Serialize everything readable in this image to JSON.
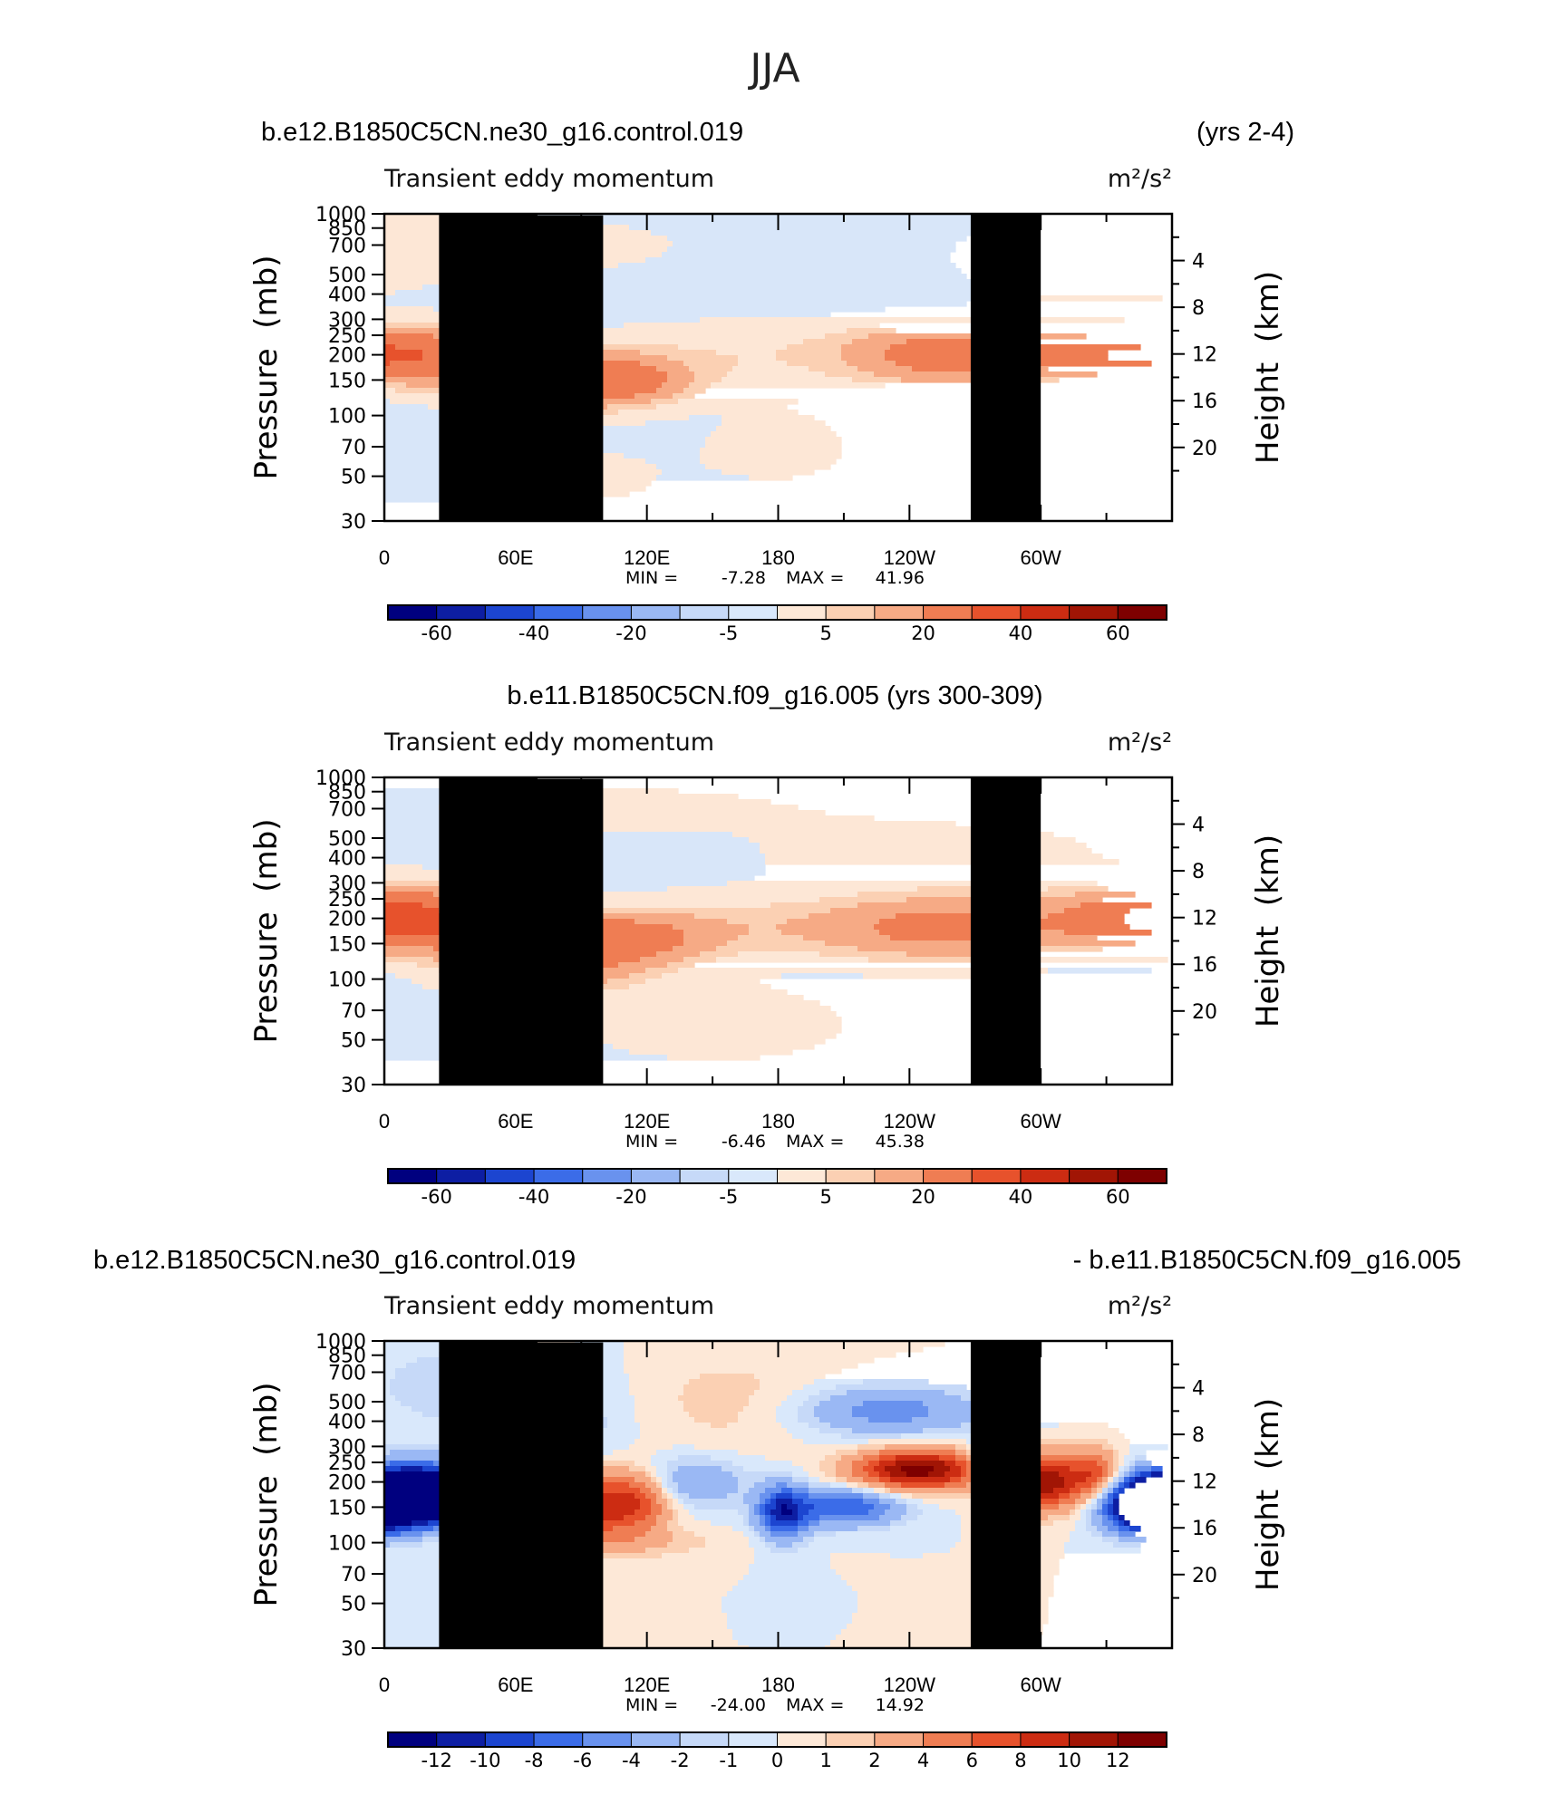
{
  "figure_title": "JJA",
  "colors": {
    "blues": [
      "#00007f",
      "#0d1ea3",
      "#1c45d0",
      "#3b6ce8",
      "#6992ee",
      "#9ab8f4",
      "#c6d9f8",
      "#d9e8fb"
    ],
    "reds": [
      "#fde8d7",
      "#fbd0b3",
      "#f6aa85",
      "#ef7d53",
      "#e7522c",
      "#cc2c12",
      "#a11505",
      "#7e0000"
    ],
    "neutral_blue": "#d8e6f9",
    "neutral_red": "#fde7d6",
    "topography": "#000000"
  },
  "chart_data": [
    {
      "type": "heatmap",
      "header_left": "b.e12.B1850C5CN.ne30_g16.control.019",
      "header_right": "(yrs 2-4)",
      "title": "Transient eddy momentum",
      "units": "m²/s²",
      "ylabel": "Pressure  (mb)",
      "y2label": "Height  (km)",
      "xticks": [
        "0",
        "60E",
        "120E",
        "180",
        "120W",
        "60W"
      ],
      "yticks": [
        "30",
        "50",
        "70",
        "100",
        "150",
        "200",
        "250",
        "300",
        "400",
        "500",
        "700",
        "850",
        "1000"
      ],
      "y2ticks": [
        "20",
        "16",
        "12",
        "8",
        "4"
      ],
      "ylim_mb": [
        1000,
        30
      ],
      "xlim_lon": [
        0,
        360
      ],
      "min_label": "MIN =",
      "min_value": "-7.28",
      "max_label": "MAX =",
      "max_value": "41.96",
      "colorbar_labels": [
        "-60",
        "-40",
        "-20",
        "-5",
        "5",
        "20",
        "40",
        "60"
      ],
      "blobs": [
        {
          "lon": 85,
          "p": 150,
          "sx": 32,
          "sy": 0.22,
          "a": 32
        },
        {
          "lon": 113,
          "p": 150,
          "sx": 14,
          "sy": 0.14,
          "a": 14
        },
        {
          "lon": 25,
          "p": 200,
          "sx": 22,
          "sy": 0.2,
          "a": 23
        },
        {
          "lon": 258,
          "p": 200,
          "sx": 30,
          "sy": 0.22,
          "a": 30
        },
        {
          "lon": 330,
          "p": 200,
          "sx": 26,
          "sy": 0.2,
          "a": 32
        },
        {
          "lon": 360,
          "p": 200,
          "sx": 22,
          "sy": 0.2,
          "a": 18
        },
        {
          "lon": 170,
          "p": 200,
          "sx": 55,
          "sy": 0.28,
          "a": 6
        },
        {
          "lon": 180,
          "p": 70,
          "sx": 25,
          "sy": 0.3,
          "a": 4
        },
        {
          "lon": 90,
          "p": 50,
          "sx": 35,
          "sy": 0.3,
          "a": 3
        },
        {
          "lon": 60,
          "p": 700,
          "sx": 60,
          "sy": 0.25,
          "a": 4
        },
        {
          "lon": 320,
          "p": 600,
          "sx": 50,
          "sy": 0.4,
          "a": 4
        }
      ],
      "base": -2
    },
    {
      "type": "heatmap",
      "header_left": "b.e11.B1850C5CN.f09_g16.005 (yrs 300-309)",
      "header_right": "",
      "title": "Transient eddy momentum",
      "units": "m²/s²",
      "ylabel": "Pressure  (mb)",
      "y2label": "Height  (km)",
      "xticks": [
        "0",
        "60E",
        "120E",
        "180",
        "120W",
        "60W"
      ],
      "yticks": [
        "30",
        "50",
        "70",
        "100",
        "150",
        "200",
        "250",
        "300",
        "400",
        "500",
        "700",
        "850",
        "1000"
      ],
      "y2ticks": [
        "20",
        "16",
        "12",
        "8",
        "4"
      ],
      "ylim_mb": [
        1000,
        30
      ],
      "xlim_lon": [
        0,
        360
      ],
      "min_label": "MIN =",
      "min_value": "-6.46",
      "max_label": "MAX =",
      "max_value": "45.38",
      "colorbar_labels": [
        "-60",
        "-40",
        "-20",
        "-5",
        "5",
        "20",
        "40",
        "60"
      ],
      "blobs": [
        {
          "lon": 75,
          "p": 130,
          "sx": 30,
          "sy": 0.25,
          "a": 30
        },
        {
          "lon": 50,
          "p": 160,
          "sx": 15,
          "sy": 0.12,
          "a": 18
        },
        {
          "lon": 110,
          "p": 160,
          "sx": 25,
          "sy": 0.18,
          "a": 22
        },
        {
          "lon": 15,
          "p": 200,
          "sx": 24,
          "sy": 0.22,
          "a": 30
        },
        {
          "lon": 258,
          "p": 180,
          "sx": 38,
          "sy": 0.24,
          "a": 27
        },
        {
          "lon": 350,
          "p": 200,
          "sx": 30,
          "sy": 0.22,
          "a": 34
        },
        {
          "lon": 160,
          "p": 180,
          "sx": 50,
          "sy": 0.25,
          "a": 9
        },
        {
          "lon": 150,
          "p": 60,
          "sx": 50,
          "sy": 0.35,
          "a": 4
        },
        {
          "lon": 250,
          "p": 400,
          "sx": 60,
          "sy": 0.3,
          "a": 4
        },
        {
          "lon": 100,
          "p": 700,
          "sx": 80,
          "sy": 0.25,
          "a": 3
        }
      ],
      "base": -2
    },
    {
      "type": "heatmap",
      "header_left": "b.e12.B1850C5CN.ne30_g16.control.019",
      "header_right": "- b.e11.B1850C5CN.f09_g16.005",
      "title": "Transient eddy momentum",
      "units": "m²/s²",
      "ylabel": "Pressure  (mb)",
      "y2label": "Height  (km)",
      "xticks": [
        "0",
        "60E",
        "120E",
        "180",
        "120W",
        "60W"
      ],
      "yticks": [
        "30",
        "50",
        "70",
        "100",
        "150",
        "200",
        "250",
        "300",
        "400",
        "500",
        "700",
        "850",
        "1000"
      ],
      "y2ticks": [
        "20",
        "16",
        "12",
        "8",
        "4"
      ],
      "ylim_mb": [
        1000,
        30
      ],
      "xlim_lon": [
        0,
        360
      ],
      "min_label": "MIN =",
      "min_value": "-24.00",
      "max_label": "MAX =",
      "max_value": "14.92",
      "colorbar_labels": [
        "-12",
        "-10",
        "-8",
        "-6",
        "-4",
        "-2",
        "-1",
        "0",
        "1",
        "2",
        "4",
        "6",
        "8",
        "10",
        "12"
      ],
      "blobs": [
        {
          "lon": 10,
          "p": 170,
          "sx": 18,
          "sy": 0.22,
          "a": -22
        },
        {
          "lon": 50,
          "p": 150,
          "sx": 12,
          "sy": 0.18,
          "a": -20
        },
        {
          "lon": 35,
          "p": 180,
          "sx": 20,
          "sy": 0.2,
          "a": -8
        },
        {
          "lon": 92,
          "p": 150,
          "sx": 10,
          "sy": 0.25,
          "a": 7
        },
        {
          "lon": 113,
          "p": 160,
          "sx": 12,
          "sy": 0.25,
          "a": 9
        },
        {
          "lon": 140,
          "p": 200,
          "sx": 18,
          "sy": 0.2,
          "a": -4
        },
        {
          "lon": 182,
          "p": 140,
          "sx": 8,
          "sy": 0.22,
          "a": -10
        },
        {
          "lon": 210,
          "p": 150,
          "sx": 18,
          "sy": 0.15,
          "a": -8
        },
        {
          "lon": 244,
          "p": 230,
          "sx": 20,
          "sy": 0.16,
          "a": 13
        },
        {
          "lon": 280,
          "p": 250,
          "sx": 8,
          "sy": 0.2,
          "a": -6
        },
        {
          "lon": 300,
          "p": 200,
          "sx": 14,
          "sy": 0.22,
          "a": 12
        },
        {
          "lon": 325,
          "p": 220,
          "sx": 8,
          "sy": 0.2,
          "a": 6
        },
        {
          "lon": 350,
          "p": 150,
          "sx": 14,
          "sy": 0.2,
          "a": -18
        },
        {
          "lon": 70,
          "p": 550,
          "sx": 10,
          "sy": 0.35,
          "a": 4
        },
        {
          "lon": 230,
          "p": 450,
          "sx": 30,
          "sy": 0.2,
          "a": -5
        },
        {
          "lon": 80,
          "p": 400,
          "sx": 20,
          "sy": 0.4,
          "a": -2
        },
        {
          "lon": 160,
          "p": 500,
          "sx": 30,
          "sy": 0.4,
          "a": 1.5
        },
        {
          "lon": 30,
          "p": 600,
          "sx": 30,
          "sy": 0.4,
          "a": -1.5
        },
        {
          "lon": 100,
          "p": 100,
          "sx": 40,
          "sy": 0.12,
          "a": 2
        }
      ],
      "base": 0
    }
  ]
}
